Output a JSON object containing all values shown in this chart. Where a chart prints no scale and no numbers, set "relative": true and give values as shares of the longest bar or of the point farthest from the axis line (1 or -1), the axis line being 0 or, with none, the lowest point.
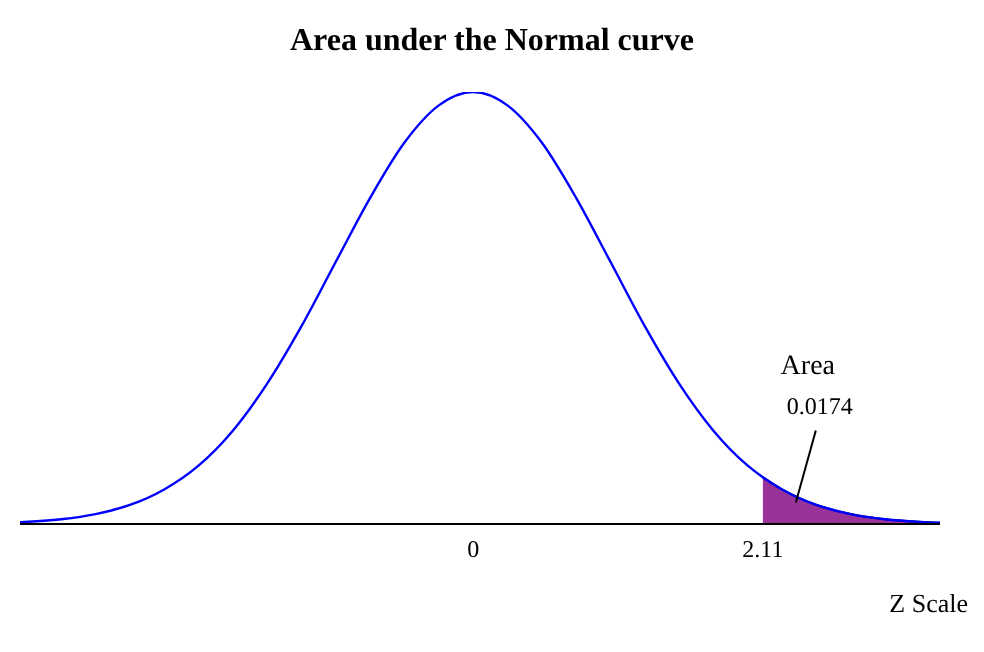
{
  "chart_data": {
    "type": "line",
    "title": "Area under the Normal curve",
    "xlabel": "Z Scale",
    "relative": true,
    "xlim": [
      -3.3,
      3.4
    ],
    "xticks": [
      0,
      2.11
    ],
    "grid": false,
    "legend": false,
    "marker": "none",
    "line_style": "solid",
    "series": [
      {
        "color": "#0000ff",
        "x": [
          -3.3,
          -3,
          -2.75,
          -2.5,
          -2.25,
          -2,
          -1.75,
          -1.5,
          -1.25,
          -1,
          -0.75,
          -0.5,
          -0.25,
          0,
          0.25,
          0.5,
          0.75,
          1,
          1.25,
          1.5,
          1.75,
          2,
          2.11,
          2.25,
          2.5,
          2.75,
          3,
          3.25,
          3.4
        ],
        "values": [
          0.004,
          0.011,
          0.023,
          0.044,
          0.08,
          0.135,
          0.216,
          0.325,
          0.458,
          0.607,
          0.755,
          0.883,
          0.969,
          1,
          0.969,
          0.883,
          0.755,
          0.607,
          0.458,
          0.325,
          0.216,
          0.135,
          0.108,
          0.08,
          0.044,
          0.023,
          0.011,
          0.005,
          0.003
        ]
      },
      {
        "type": "area",
        "color": "#993399",
        "x": [
          2.11,
          2.25,
          2.5,
          2.75,
          3,
          3.25,
          3.4
        ],
        "values": [
          0.108,
          0.08,
          0.044,
          0.023,
          0.011,
          0.005,
          0.003
        ]
      }
    ],
    "annotations": [
      "Area",
      {
        "text": "0.0174",
        "x": 2.35,
        "y": 0.05
      }
    ]
  }
}
